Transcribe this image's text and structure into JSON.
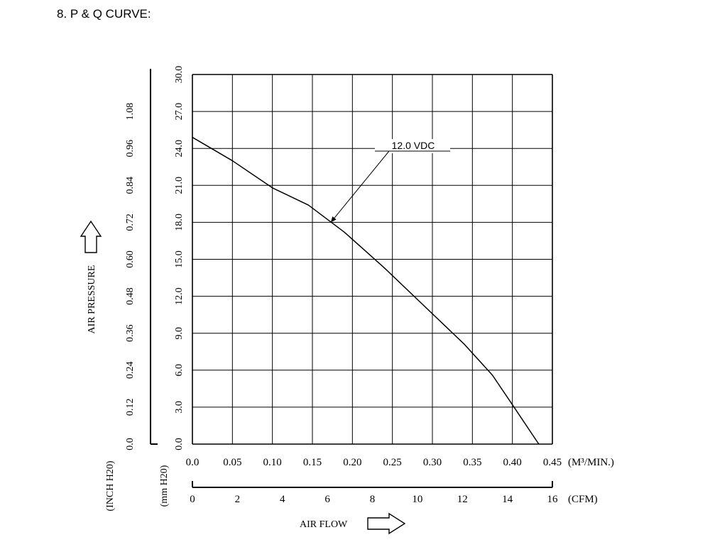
{
  "section_title": "8. P & Q CURVE:",
  "chart_data": {
    "type": "line",
    "title": "",
    "xlabel": "AIR FLOW",
    "ylabel": "AIR PRESSURE",
    "x_unit_primary": "(M³/MIN.)",
    "x_unit_secondary": "(CFM)",
    "y_unit_primary": "(mm H20)",
    "y_unit_secondary": "(INCH H20)",
    "xlim": [
      0,
      0.45
    ],
    "ylim": [
      0,
      30
    ],
    "grid": true,
    "x_ticks_m3min": [
      "0.0",
      "0.05",
      "0.10",
      "0.15",
      "0.20",
      "0.25",
      "0.30",
      "0.35",
      "0.40",
      "0.45"
    ],
    "x_ticks_cfm": [
      "0",
      "2",
      "4",
      "6",
      "8",
      "10",
      "12",
      "14",
      "16"
    ],
    "y_ticks_mmh2o": [
      "0.0",
      "3.0",
      "6.0",
      "9.0",
      "12.0",
      "15.0",
      "18.0",
      "21.0",
      "24.0",
      "27.0",
      "30.0"
    ],
    "y_ticks_inch": [
      "0.0",
      "0.12",
      "0.24",
      "0.36",
      "0.48",
      "0.60",
      "0.72",
      "0.84",
      "0.96",
      "1.08"
    ],
    "series": [
      {
        "name": "12.0 VDC",
        "x": [
          0.0,
          0.05,
          0.1,
          0.145,
          0.19,
          0.24,
          0.29,
          0.34,
          0.375,
          0.4,
          0.433
        ],
        "y": [
          24.9,
          23.0,
          20.8,
          19.4,
          17.2,
          14.3,
          11.2,
          8.1,
          5.6,
          3.2,
          0.0
        ]
      }
    ],
    "annotation": {
      "text": "12.0 VDC",
      "x": 0.173,
      "y": 18.0
    }
  }
}
